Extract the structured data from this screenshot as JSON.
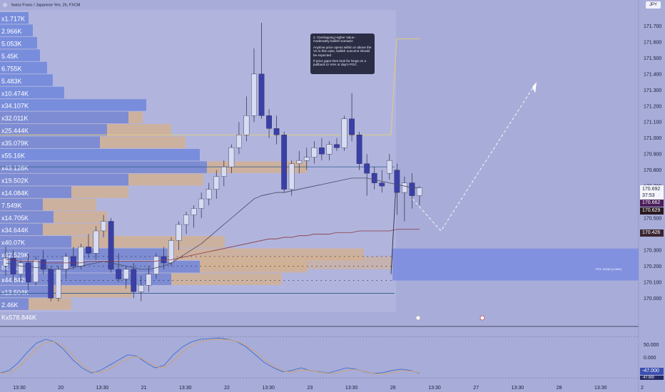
{
  "header": {
    "symbol_title": "Swiss Franc / Japanese Yen, 2h, FXCM",
    "currency_badge": "JPY"
  },
  "callout": {
    "title": "2. Overlapping Higher Value - moderately bullish scenario",
    "body1": "Anytime price opens within or above the VA in this case, bullish outcome should be expected",
    "body2": "If price gaps then look for longs on a pullback to VAH or day's POC."
  },
  "poc_zone_label": "POC ZONE (LONG)",
  "price_tags": {
    "last_price": "170.692",
    "countdown": "37:53",
    "tag_purple": "170.662",
    "tag_dark": "170.629",
    "tag_dark2": "170.426",
    "osc_value": "-47.000",
    "osc_value2": "-47.000"
  },
  "volume_profile_labels": [
    "x1.717K",
    "2.966K",
    "5.053K",
    "5.45K",
    "6.755K",
    "5.483K",
    "x10.474K",
    "x34.107K",
    "x32.011K",
    "x25.444K",
    "x35.079K",
    "x55.16K",
    "x43.128K",
    "x19.502K",
    "x14.084K",
    "7.549K",
    "x14.705K",
    "x34.644K",
    "x40.07K",
    "x42.529K",
    "82.1.3K",
    "x44.842K",
    "x13.504K",
    "2.46K",
    "Kx578.846K"
  ],
  "colors": {
    "background": "#a8acd8",
    "bull_candle": "#d8dcf2",
    "bear_candle": "#3a3fa8",
    "profile_blue": "#6f86dc",
    "profile_tan": "#d4b08e",
    "poc_zone": "#7d8ee0",
    "vah_line": "#e8d070",
    "ma_line": "#4a4a66",
    "ma2_line": "#8a3a40",
    "osc_line1": "#3c6fd0",
    "osc_line2": "#d0a070"
  },
  "chart_data": {
    "type": "candlestick",
    "title": "Swiss Franc / Japanese Yen, 2h, FXCM",
    "ylim": [
      169.85,
      171.8
    ],
    "y_ticks": [
      "171.700",
      "171.600",
      "171.500",
      "171.400",
      "171.300",
      "171.200",
      "171.100",
      "171.000",
      "170.900",
      "170.800",
      "170.700",
      "170.600",
      "170.500",
      "170.400",
      "170.300",
      "170.200",
      "170.100",
      "170.000"
    ],
    "x_ticks": [
      "13:30",
      "20",
      "13:30",
      "21",
      "13:30",
      "22",
      "13:30",
      "23",
      "13:30",
      "26",
      "13:30",
      "27",
      "13:30",
      "28",
      "13:30",
      "2"
    ],
    "candles": [
      {
        "o": 170.2,
        "h": 170.32,
        "l": 170.14,
        "c": 170.25
      },
      {
        "o": 170.25,
        "h": 170.3,
        "l": 170.1,
        "c": 170.15
      },
      {
        "o": 170.15,
        "h": 170.24,
        "l": 170.1,
        "c": 170.22
      },
      {
        "o": 170.22,
        "h": 170.28,
        "l": 170.05,
        "c": 170.1
      },
      {
        "o": 170.1,
        "h": 170.26,
        "l": 170.08,
        "c": 170.24
      },
      {
        "o": 170.24,
        "h": 170.3,
        "l": 170.15,
        "c": 170.18
      },
      {
        "o": 170.18,
        "h": 170.2,
        "l": 169.98,
        "c": 170.0
      },
      {
        "o": 170.0,
        "h": 170.2,
        "l": 169.98,
        "c": 170.18
      },
      {
        "o": 170.18,
        "h": 170.28,
        "l": 170.12,
        "c": 170.26
      },
      {
        "o": 170.26,
        "h": 170.32,
        "l": 170.18,
        "c": 170.2
      },
      {
        "o": 170.2,
        "h": 170.34,
        "l": 170.18,
        "c": 170.32
      },
      {
        "o": 170.32,
        "h": 170.4,
        "l": 170.25,
        "c": 170.28
      },
      {
        "o": 170.28,
        "h": 170.45,
        "l": 170.24,
        "c": 170.42
      },
      {
        "o": 170.42,
        "h": 170.52,
        "l": 170.38,
        "c": 170.48
      },
      {
        "o": 170.48,
        "h": 170.5,
        "l": 170.16,
        "c": 170.18
      },
      {
        "o": 170.18,
        "h": 170.28,
        "l": 170.1,
        "c": 170.12
      },
      {
        "o": 170.12,
        "h": 170.2,
        "l": 170.06,
        "c": 170.18
      },
      {
        "o": 170.18,
        "h": 170.22,
        "l": 170.0,
        "c": 170.04
      },
      {
        "o": 170.04,
        "h": 170.14,
        "l": 169.98,
        "c": 170.08
      },
      {
        "o": 170.08,
        "h": 170.2,
        "l": 170.04,
        "c": 170.15
      },
      {
        "o": 170.15,
        "h": 170.28,
        "l": 170.12,
        "c": 170.26
      },
      {
        "o": 170.26,
        "h": 170.32,
        "l": 170.18,
        "c": 170.22
      },
      {
        "o": 170.22,
        "h": 170.38,
        "l": 170.2,
        "c": 170.36
      },
      {
        "o": 170.36,
        "h": 170.48,
        "l": 170.3,
        "c": 170.46
      },
      {
        "o": 170.46,
        "h": 170.54,
        "l": 170.4,
        "c": 170.52
      },
      {
        "o": 170.52,
        "h": 170.58,
        "l": 170.44,
        "c": 170.56
      },
      {
        "o": 170.56,
        "h": 170.66,
        "l": 170.5,
        "c": 170.62
      },
      {
        "o": 170.62,
        "h": 170.72,
        "l": 170.58,
        "c": 170.68
      },
      {
        "o": 170.68,
        "h": 170.8,
        "l": 170.62,
        "c": 170.76
      },
      {
        "o": 170.76,
        "h": 170.86,
        "l": 170.7,
        "c": 170.82
      },
      {
        "o": 170.82,
        "h": 170.96,
        "l": 170.78,
        "c": 170.94
      },
      {
        "o": 170.94,
        "h": 171.1,
        "l": 170.9,
        "c": 171.02
      },
      {
        "o": 171.02,
        "h": 171.26,
        "l": 170.98,
        "c": 171.14
      },
      {
        "o": 171.14,
        "h": 171.56,
        "l": 171.1,
        "c": 171.4
      },
      {
        "o": 171.4,
        "h": 171.72,
        "l": 171.12,
        "c": 171.14
      },
      {
        "o": 171.14,
        "h": 171.18,
        "l": 171.0,
        "c": 171.06
      },
      {
        "o": 171.06,
        "h": 171.14,
        "l": 170.96,
        "c": 171.02
      },
      {
        "o": 171.02,
        "h": 171.04,
        "l": 170.66,
        "c": 170.68
      },
      {
        "o": 170.68,
        "h": 170.86,
        "l": 170.64,
        "c": 170.84
      },
      {
        "o": 170.84,
        "h": 170.92,
        "l": 170.78,
        "c": 170.86
      },
      {
        "o": 170.86,
        "h": 170.94,
        "l": 170.8,
        "c": 170.88
      },
      {
        "o": 170.88,
        "h": 170.98,
        "l": 170.84,
        "c": 170.94
      },
      {
        "o": 170.94,
        "h": 171.0,
        "l": 170.86,
        "c": 170.9
      },
      {
        "o": 170.9,
        "h": 170.98,
        "l": 170.86,
        "c": 170.96
      },
      {
        "o": 170.96,
        "h": 171.0,
        "l": 170.92,
        "c": 170.94
      },
      {
        "o": 170.94,
        "h": 171.14,
        "l": 170.92,
        "c": 171.12
      },
      {
        "o": 171.12,
        "h": 171.28,
        "l": 170.98,
        "c": 171.02
      },
      {
        "o": 171.02,
        "h": 171.04,
        "l": 170.8,
        "c": 170.84
      },
      {
        "o": 170.84,
        "h": 170.9,
        "l": 170.64,
        "c": 170.78
      },
      {
        "o": 170.78,
        "h": 170.82,
        "l": 170.68,
        "c": 170.72
      },
      {
        "o": 170.72,
        "h": 170.8,
        "l": 170.66,
        "c": 170.7
      },
      {
        "o": 170.78,
        "h": 170.9,
        "l": 170.74,
        "c": 170.86
      },
      {
        "o": 170.8,
        "h": 170.84,
        "l": 170.52,
        "c": 170.66
      },
      {
        "o": 170.66,
        "h": 170.76,
        "l": 170.48,
        "c": 170.72
      },
      {
        "o": 170.72,
        "h": 170.78,
        "l": 170.56,
        "c": 170.64
      },
      {
        "o": 170.64,
        "h": 170.7,
        "l": 170.58,
        "c": 170.69
      }
    ],
    "ma_series": [
      {
        "name": "",
        "values": [
          170.22,
          170.21,
          170.2,
          170.2,
          170.19,
          170.19,
          170.18,
          170.18,
          170.18,
          170.19,
          170.2,
          170.21,
          170.22,
          170.23,
          170.22,
          170.21,
          170.2,
          170.19,
          170.18,
          170.18,
          170.19,
          170.2,
          170.22,
          170.25,
          170.28,
          170.31,
          170.34,
          170.38,
          170.42,
          170.46,
          170.5,
          170.54,
          170.58,
          170.62,
          170.64,
          170.65,
          170.66,
          170.66,
          170.67,
          170.68,
          170.69,
          170.7,
          170.71,
          170.72,
          170.73,
          170.74,
          170.75,
          170.75,
          170.75,
          170.74,
          170.73,
          170.72,
          170.71,
          170.7,
          170.69,
          170.69
        ]
      },
      {
        "name": "",
        "values": [
          170.24,
          170.24,
          170.23,
          170.23,
          170.23,
          170.22,
          170.22,
          170.22,
          170.22,
          170.22,
          170.22,
          170.23,
          170.23,
          170.23,
          170.23,
          170.23,
          170.23,
          170.23,
          170.23,
          170.23,
          170.23,
          170.24,
          170.24,
          170.25,
          170.26,
          170.27,
          170.28,
          170.29,
          170.3,
          170.31,
          170.32,
          170.33,
          170.34,
          170.35,
          170.36,
          170.37,
          170.37,
          170.38,
          170.38,
          170.39,
          170.39,
          170.4,
          170.4,
          170.4,
          170.41,
          170.41,
          170.41,
          170.42,
          170.42,
          170.42,
          170.42,
          170.42,
          170.43,
          170.43,
          170.43,
          170.43
        ]
      }
    ],
    "levels": {
      "vah": 170.82,
      "val": 170.03,
      "poc_zone": [
        170.11,
        170.31
      ],
      "upper_line": 171.02,
      "line_1716": 171.62
    },
    "oscillator": {
      "ylim": [
        -100,
        100
      ],
      "ticks": [
        "50.000",
        "0.000",
        "-50.000"
      ],
      "value": -47
    }
  }
}
